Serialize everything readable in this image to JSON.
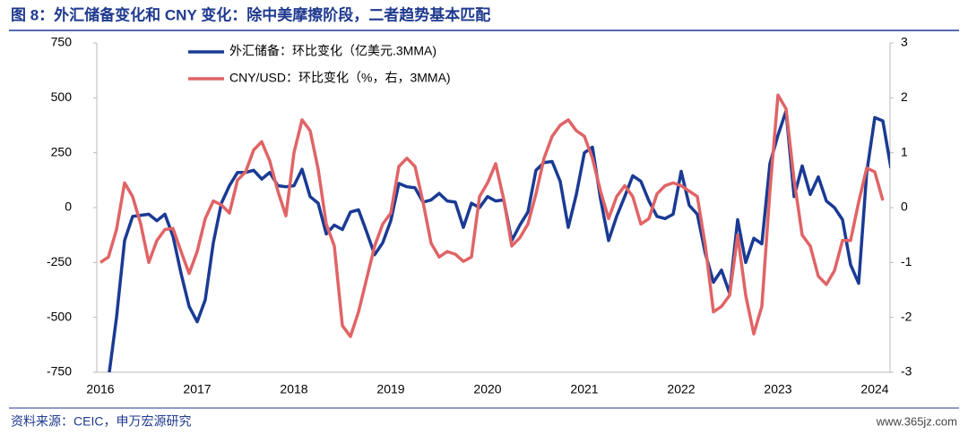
{
  "chart_data": {
    "type": "line",
    "title": "图 8：外汇储备变化和 CNY 变化：除中美摩擦阶段，二者趋势基本匹配",
    "categories": [
      "2016",
      null,
      null,
      null,
      null,
      null,
      null,
      null,
      null,
      null,
      null,
      null,
      "2017",
      null,
      null,
      null,
      null,
      null,
      null,
      null,
      null,
      null,
      null,
      null,
      "2018",
      null,
      null,
      null,
      null,
      null,
      null,
      null,
      null,
      null,
      null,
      null,
      "2019",
      null,
      null,
      null,
      null,
      null,
      null,
      null,
      null,
      null,
      null,
      null,
      "2020",
      null,
      null,
      null,
      null,
      null,
      null,
      null,
      null,
      null,
      null,
      null,
      "2021",
      null,
      null,
      null,
      null,
      null,
      null,
      null,
      null,
      null,
      null,
      null,
      "2022",
      null,
      null,
      null,
      null,
      null,
      null,
      null,
      null,
      null,
      null,
      null,
      "2023",
      null,
      null,
      null,
      null,
      null,
      null,
      null,
      null,
      null,
      null,
      null,
      "2024",
      null,
      null
    ],
    "series": [
      {
        "name": "外汇储备：环比变化（亿美元.3MMA)",
        "color": "#1a3a94",
        "axis": "y",
        "values": [
          null,
          -780,
          -500,
          -150,
          -40,
          -35,
          -30,
          -60,
          -30,
          -130,
          -300,
          -450,
          -520,
          -420,
          -160,
          20,
          100,
          160,
          160,
          170,
          130,
          160,
          100,
          95,
          100,
          175,
          50,
          20,
          -120,
          -80,
          -100,
          -20,
          -10,
          -110,
          -215,
          -160,
          -60,
          110,
          95,
          90,
          25,
          35,
          65,
          30,
          25,
          -90,
          20,
          0,
          50,
          30,
          35,
          -150,
          -80,
          -20,
          170,
          205,
          210,
          120,
          -90,
          60,
          250,
          275,
          40,
          -150,
          -40,
          50,
          145,
          120,
          30,
          -40,
          -50,
          -30,
          165,
          10,
          -30,
          -210,
          -340,
          -285,
          -390,
          -55,
          -250,
          -140,
          -165,
          200,
          330,
          440,
          50,
          190,
          60,
          140,
          30,
          0,
          -55,
          -260,
          -345,
          160,
          410,
          395,
          180
        ]
      },
      {
        "name": "CNY/USD：环比变化（%，右，3MMA)",
        "color": "#e06466",
        "axis": "y2",
        "values": [
          -1.0,
          -0.9,
          -0.4,
          0.45,
          0.2,
          -0.3,
          -1.0,
          -0.6,
          -0.4,
          -0.38,
          -0.8,
          -1.2,
          -0.8,
          -0.2,
          0.12,
          0.05,
          -0.1,
          0.5,
          0.65,
          1.05,
          1.2,
          0.85,
          0.3,
          -0.15,
          1.0,
          1.6,
          1.4,
          0.7,
          -0.3,
          -0.7,
          -2.15,
          -2.35,
          -1.9,
          -1.3,
          -0.7,
          -0.3,
          -0.1,
          0.75,
          0.9,
          0.75,
          0.1,
          -0.65,
          -0.9,
          -0.8,
          -0.85,
          -0.98,
          -0.9,
          0.2,
          0.45,
          0.8,
          0.15,
          -0.7,
          -0.55,
          -0.3,
          0.25,
          0.9,
          1.3,
          1.5,
          1.6,
          1.4,
          1.3,
          0.9,
          0.3,
          -0.2,
          0.2,
          0.4,
          0.2,
          -0.3,
          -0.2,
          0.25,
          0.4,
          0.45,
          0.4,
          0.3,
          0.2,
          -0.7,
          -1.9,
          -1.8,
          -1.6,
          -0.5,
          -1.6,
          -2.3,
          -1.8,
          0.3,
          2.05,
          1.8,
          0.5,
          -0.5,
          -0.7,
          -1.25,
          -1.4,
          -1.15,
          -0.6,
          -0.6,
          0.1,
          0.72,
          0.65,
          0.13,
          null
        ]
      }
    ],
    "ylim": [
      -750,
      750
    ],
    "yticks": [
      -750,
      -500,
      -250,
      0,
      250,
      500,
      750
    ],
    "y2lim": [
      -3,
      3
    ],
    "y2ticks": [
      -3,
      -2,
      -1,
      0,
      1,
      2,
      3
    ],
    "grid": false,
    "legend": "top-left",
    "source": "资料来源：CEIC，申万宏源研究"
  },
  "watermark": "www.365jz.com"
}
